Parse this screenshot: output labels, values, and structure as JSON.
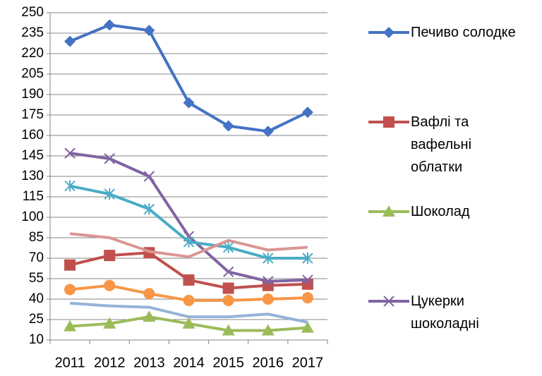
{
  "chart_data": {
    "type": "line",
    "categories": [
      "2011",
      "2012",
      "2013",
      "2014",
      "2015",
      "2016",
      "2017"
    ],
    "ylim": [
      10,
      250
    ],
    "yticks": [
      10,
      25,
      40,
      55,
      70,
      85,
      100,
      115,
      130,
      145,
      160,
      175,
      190,
      205,
      220,
      235,
      250
    ],
    "grid": true,
    "legend": "right",
    "series": [
      {
        "name": "Печиво солодке",
        "color": "#4472c4",
        "marker": "diamond",
        "values": [
          229,
          241,
          237,
          184,
          167,
          163,
          177
        ]
      },
      {
        "name": "Вафлі та вафельні облатки",
        "color": "#c0504d",
        "marker": "square",
        "values": [
          65,
          72,
          74,
          54,
          48,
          50,
          51
        ]
      },
      {
        "name": "Шоколад",
        "color": "#9bbb59",
        "marker": "triangle",
        "values": [
          20,
          22,
          27,
          22,
          17,
          17,
          19
        ]
      },
      {
        "name": "Цукерки шоколадні",
        "color": "#8064a2",
        "marker": "x",
        "values": [
          147,
          143,
          130,
          86,
          60,
          53,
          54
        ]
      },
      {
        "color": "#4bacc6",
        "marker": "star",
        "values": [
          123,
          117,
          106,
          82,
          78,
          70,
          70
        ]
      },
      {
        "color": "#f79646",
        "marker": "circle",
        "values": [
          47,
          50,
          44,
          39,
          39,
          40,
          41
        ]
      },
      {
        "color": "#95b3d7",
        "marker": "none",
        "values": [
          37,
          35,
          34,
          27,
          27,
          29,
          23
        ]
      },
      {
        "color": "#d99694",
        "marker": "none",
        "values": [
          88,
          85,
          75,
          71,
          83,
          76,
          78
        ]
      }
    ]
  }
}
